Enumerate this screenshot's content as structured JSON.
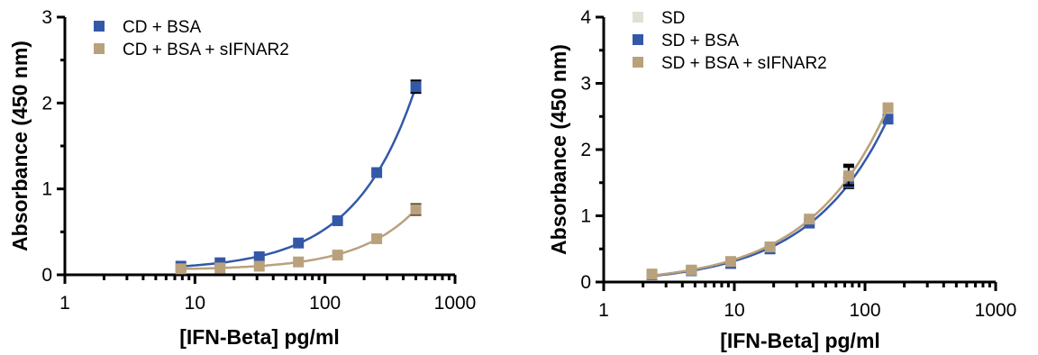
{
  "chart_data": [
    {
      "type": "scatter",
      "xscale": "log",
      "xlim": [
        1,
        1000
      ],
      "ylim": [
        0,
        3
      ],
      "xticks": [
        "1",
        "10",
        "100",
        "1000"
      ],
      "yticks": [
        "0",
        "1",
        "2",
        "3"
      ],
      "xlabel": "[IFN-Beta] pg/ml",
      "ylabel": "Absorbance (450 nm)",
      "legend_position": "top-left",
      "grid": false,
      "fit_curves": true,
      "series": [
        {
          "name": "CD + BSA",
          "color": "#3358a8",
          "x": [
            7.8,
            15.6,
            31.25,
            62.5,
            125,
            250,
            500
          ],
          "y": [
            0.1,
            0.14,
            0.21,
            0.37,
            0.63,
            1.19,
            2.19
          ],
          "err": [
            0,
            0,
            0,
            0,
            0,
            0,
            0.07
          ]
        },
        {
          "name": "CD + BSA + sIFNAR2",
          "color": "#b9a17c",
          "x": [
            7.8,
            15.6,
            31.25,
            62.5,
            125,
            250,
            500
          ],
          "y": [
            0.07,
            0.08,
            0.1,
            0.15,
            0.23,
            0.42,
            0.76
          ],
          "err": [
            0,
            0,
            0,
            0,
            0,
            0,
            0.06
          ]
        }
      ]
    },
    {
      "type": "scatter",
      "xscale": "log",
      "xlim": [
        1,
        1000
      ],
      "ylim": [
        0,
        4
      ],
      "xticks": [
        "1",
        "10",
        "100",
        "1000"
      ],
      "yticks": [
        "0",
        "1",
        "2",
        "3",
        "4"
      ],
      "xlabel": "[IFN-Beta] pg/ml",
      "ylabel": "Absorbance (450 nm)",
      "legend_position": "top-left",
      "grid": false,
      "fit_curves": true,
      "series": [
        {
          "name": "SD",
          "color": "#e2dfd6",
          "x": [
            2.34,
            4.69,
            9.38,
            18.75,
            37.5,
            75,
            150
          ],
          "y": [
            0.12,
            0.18,
            0.3,
            0.53,
            0.93,
            1.62,
            2.63
          ],
          "err": [
            0,
            0,
            0,
            0,
            0,
            0.15,
            0
          ]
        },
        {
          "name": "SD + BSA",
          "color": "#3358a8",
          "x": [
            2.34,
            4.69,
            9.38,
            18.75,
            37.5,
            75,
            150
          ],
          "y": [
            0.11,
            0.17,
            0.28,
            0.5,
            0.89,
            1.5,
            2.46
          ],
          "err": [
            0,
            0,
            0,
            0,
            0,
            0.08,
            0
          ]
        },
        {
          "name": "SD + BSA + sIFNAR2",
          "color": "#b9a17c",
          "x": [
            2.34,
            4.69,
            9.38,
            18.75,
            37.5,
            75,
            150
          ],
          "y": [
            0.12,
            0.18,
            0.31,
            0.53,
            0.95,
            1.6,
            2.63
          ],
          "err": [
            0,
            0,
            0,
            0,
            0,
            0.14,
            0
          ]
        }
      ]
    }
  ]
}
